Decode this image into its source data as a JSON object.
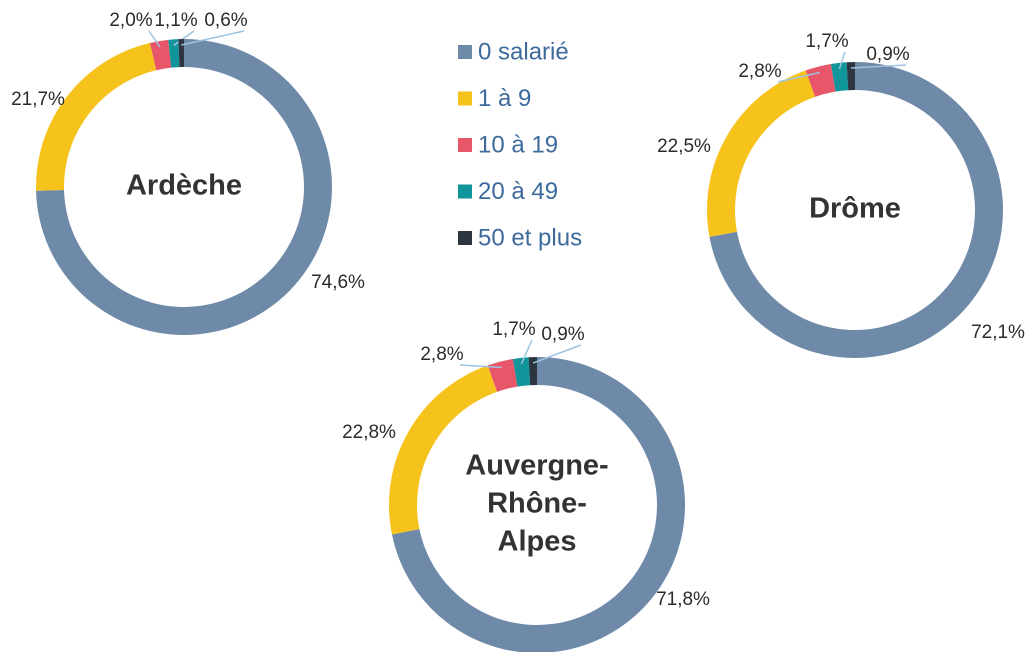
{
  "legend": {
    "categories": [
      "0 salarié",
      "1 à 9",
      "10 à 19",
      "20 à 49",
      "50  et plus"
    ],
    "colors": [
      "#6f8aa8",
      "#f6c21c",
      "#e8566a",
      "#10959a",
      "#2d3540"
    ]
  },
  "chart_data": [
    {
      "type": "pie",
      "title": [
        "Ardèche"
      ],
      "values": [
        74.6,
        21.7,
        2.0,
        1.1,
        0.6
      ],
      "value_labels": [
        "74,6%",
        "21,7%",
        "2,0%",
        "1,1%",
        "0,6%"
      ]
    },
    {
      "type": "pie",
      "title": [
        "Drôme"
      ],
      "values": [
        72.1,
        22.5,
        2.8,
        1.7,
        0.9
      ],
      "value_labels": [
        "72,1%",
        "22,5%",
        "2,8%",
        "1,7%",
        "0,9%"
      ]
    },
    {
      "type": "pie",
      "title": [
        "Auvergne-",
        "Rhône-",
        "Alpes"
      ],
      "values": [
        71.8,
        22.8,
        2.8,
        1.7,
        0.9
      ],
      "value_labels": [
        "71,8%",
        "22,8%",
        "2,8%",
        "1,7%",
        "0,9%"
      ]
    }
  ]
}
